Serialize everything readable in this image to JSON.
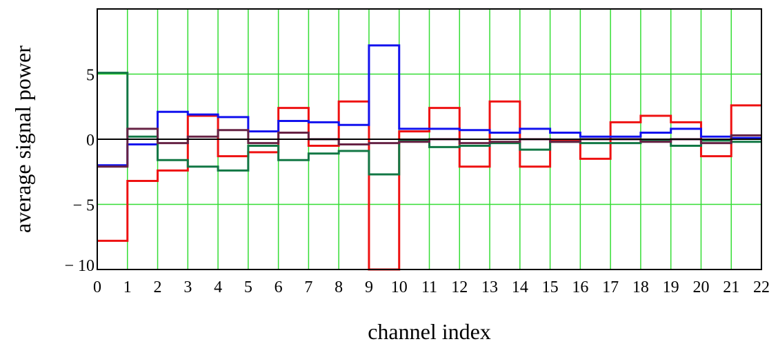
{
  "chart_data": {
    "type": "line",
    "step": true,
    "title": "",
    "xlabel": "channel index",
    "ylabel": "average signal power",
    "xlim": [
      0,
      22
    ],
    "ylim": [
      -10,
      10
    ],
    "x_ticks": [
      0,
      1,
      2,
      3,
      4,
      5,
      6,
      7,
      8,
      9,
      10,
      11,
      12,
      13,
      14,
      15,
      16,
      17,
      18,
      19,
      20,
      21,
      22
    ],
    "x_tick_labels": [
      "0",
      "1",
      "2",
      "3",
      "4",
      "5",
      "6",
      "7",
      "8",
      "9",
      "10",
      "11",
      "12",
      "13",
      "14",
      "15",
      "16",
      "17",
      "18",
      "19",
      "20",
      "21",
      "22"
    ],
    "y_ticks": [
      -10,
      -5,
      0,
      5
    ],
    "y_tick_labels": [
      "− 10",
      "− 5",
      "0",
      "5"
    ],
    "grid": true,
    "grid_color": "#33dd33",
    "x": [
      0,
      1,
      2,
      3,
      4,
      5,
      6,
      7,
      8,
      9,
      10,
      11,
      12,
      13,
      14,
      15,
      16,
      17,
      18,
      19,
      20,
      21
    ],
    "series": [
      {
        "color": "#ee1111",
        "values": [
          -7.8,
          -3.2,
          -2.4,
          1.8,
          -1.3,
          -1.0,
          2.4,
          -0.5,
          2.9,
          -10.5,
          0.6,
          2.4,
          -2.1,
          2.9,
          -2.1,
          -0.1,
          -1.5,
          1.3,
          1.8,
          1.3,
          -1.3,
          2.6
        ]
      },
      {
        "color": "#1111ee",
        "values": [
          -2.0,
          -0.4,
          2.1,
          1.9,
          1.7,
          0.6,
          1.4,
          1.3,
          1.1,
          7.2,
          0.8,
          0.8,
          0.7,
          0.5,
          0.8,
          0.5,
          0.2,
          0.2,
          0.5,
          0.8,
          0.2,
          0.1
        ]
      },
      {
        "color": "#117744",
        "values": [
          5.1,
          0.2,
          -1.6,
          -2.1,
          -2.4,
          -0.5,
          -1.6,
          -1.1,
          -0.9,
          -2.7,
          -0.1,
          -0.6,
          -0.5,
          -0.3,
          -0.8,
          -0.2,
          -0.3,
          -0.3,
          -0.1,
          -0.5,
          -0.1,
          -0.2
        ]
      },
      {
        "color": "#662244",
        "values": [
          -2.1,
          0.8,
          -0.3,
          0.2,
          0.7,
          -0.3,
          0.5,
          0.0,
          -0.4,
          -0.3,
          -0.2,
          0.0,
          -0.3,
          -0.2,
          0.0,
          -0.2,
          0.0,
          0.0,
          -0.2,
          0.0,
          -0.3,
          0.3
        ]
      }
    ]
  }
}
